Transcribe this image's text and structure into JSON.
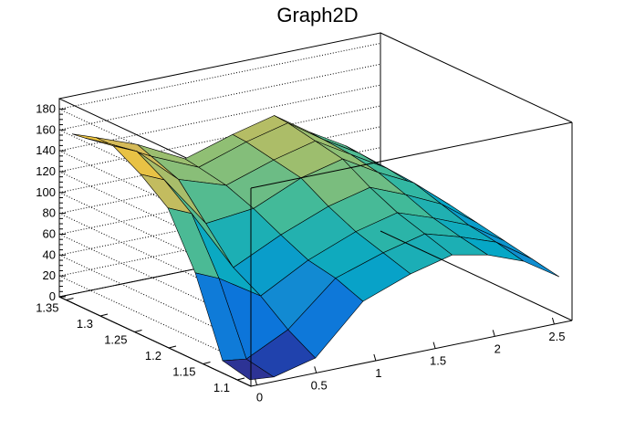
{
  "chart_data": {
    "type": "surface",
    "title": "Graph2D",
    "palette": [
      "#352a87",
      "#0363e1",
      "#1485d4",
      "#06a7c6",
      "#38b99e",
      "#92bf73",
      "#d9ba56",
      "#fcce2e",
      "#f9fb0e"
    ],
    "x_ticks": [
      "0",
      "0.5",
      "1",
      "1.5",
      "2",
      "2.5"
    ],
    "y_ticks": [
      "1.1",
      "1.15",
      "1.2",
      "1.25",
      "1.3",
      "1.35"
    ],
    "z_ticks": [
      "0",
      "20",
      "40",
      "60",
      "80",
      "100",
      "120",
      "140",
      "160",
      "180"
    ],
    "x_range": [
      -0.05,
      2.65
    ],
    "y_range": [
      1.08,
      1.36
    ],
    "z_range": [
      0,
      190
    ],
    "grid": true,
    "surface_x": [
      0,
      0.2,
      0.55,
      0.95,
      1.35,
      1.7,
      2.0,
      2.3,
      2.6
    ],
    "surface_y": [
      1.09,
      1.13,
      1.17,
      1.21,
      1.25,
      1.29,
      1.33,
      1.35
    ],
    "surface_z": [
      [
        2,
        0,
        10,
        55,
        72,
        82,
        75,
        62,
        40
      ],
      [
        8,
        5,
        25,
        65,
        80,
        90,
        80,
        68,
        45
      ],
      [
        80,
        70,
        45,
        70,
        88,
        98,
        86,
        72,
        50
      ],
      [
        130,
        120,
        60,
        82,
        100,
        110,
        96,
        80,
        55
      ],
      [
        150,
        140,
        90,
        95,
        115,
        125,
        105,
        88,
        60
      ],
      [
        165,
        155,
        120,
        105,
        120,
        130,
        110,
        90,
        62
      ],
      [
        160,
        150,
        130,
        110,
        125,
        135,
        112,
        92,
        65
      ],
      [
        158,
        150,
        135,
        112,
        126,
        136,
        113,
        93,
        66
      ]
    ]
  }
}
